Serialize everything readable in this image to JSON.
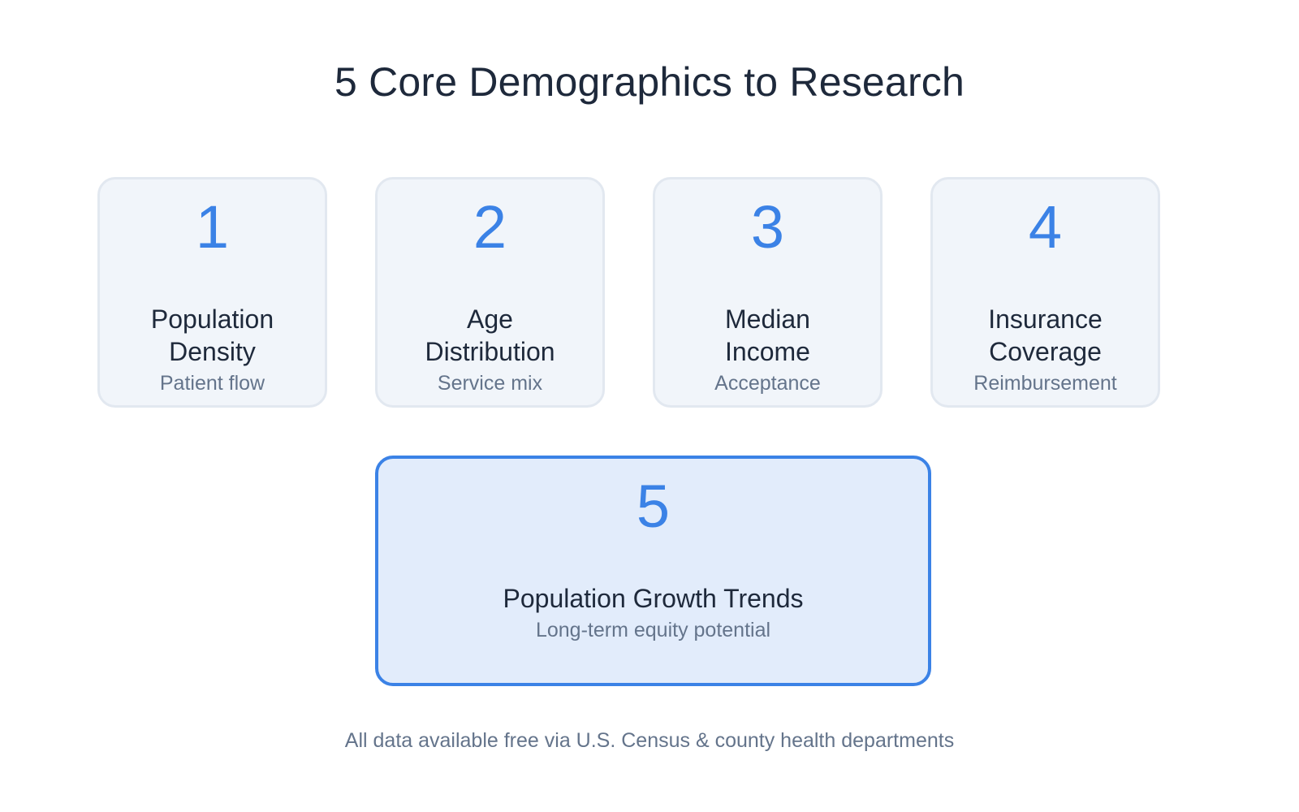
{
  "title": "5 Core Demographics to Research",
  "colors": {
    "accent": "#3b82e6",
    "card_background": "#f1f5fa",
    "highlight_background": "#e2ecfb",
    "text": "#1e293b",
    "muted_text": "#64748b"
  },
  "cards": [
    {
      "number": "1",
      "label_line1": "Population",
      "label_line2": "Density",
      "sub": "Patient flow"
    },
    {
      "number": "2",
      "label_line1": "Age",
      "label_line2": "Distribution",
      "sub": "Service mix"
    },
    {
      "number": "3",
      "label_line1": "Median",
      "label_line2": "Income",
      "sub": "Acceptance"
    },
    {
      "number": "4",
      "label_line1": "Insurance",
      "label_line2": "Coverage",
      "sub": "Reimbursement"
    }
  ],
  "highlight_card": {
    "number": "5",
    "label": "Population Growth Trends",
    "sub": "Long-term equity potential"
  },
  "footnote": "All data available free via U.S. Census & county health departments"
}
